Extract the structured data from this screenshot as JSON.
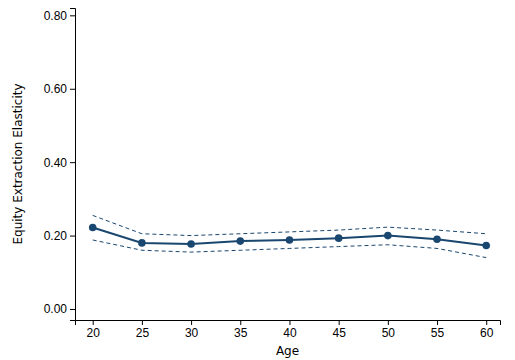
{
  "chart_data": {
    "type": "line",
    "x_label": "Age",
    "y_label": "Equity Extraction Elasticity",
    "x": [
      20,
      25,
      30,
      35,
      40,
      45,
      50,
      55,
      60
    ],
    "series": [
      {
        "color": "#1a476f",
        "line_style": "solid",
        "marker": "circle",
        "values": [
          0.222,
          0.18,
          0.177,
          0.185,
          0.188,
          0.193,
          0.2,
          0.19,
          0.173
        ]
      },
      {
        "color": "#1a476f",
        "line_style": "dashed",
        "marker": "none",
        "values": [
          0.255,
          0.205,
          0.2,
          0.205,
          0.21,
          0.215,
          0.223,
          0.215,
          0.205
        ]
      },
      {
        "color": "#1a476f",
        "line_style": "dashed",
        "marker": "none",
        "values": [
          0.188,
          0.16,
          0.155,
          0.16,
          0.165,
          0.17,
          0.175,
          0.165,
          0.14
        ]
      }
    ],
    "xlim": [
      18.2,
      61.4
    ],
    "xticks": [
      20,
      25,
      30,
      35,
      40,
      45,
      50,
      55,
      60
    ],
    "ylim": [
      -0.03,
      0.82
    ],
    "yticks": [
      {
        "value": 0,
        "label": "0.00"
      },
      {
        "value": 0.2,
        "label": "0.20"
      },
      {
        "value": 0.4,
        "label": "0.40"
      },
      {
        "value": 0.6,
        "label": "0.60"
      },
      {
        "value": 0.8,
        "label": "0.80"
      }
    ],
    "grid": false
  }
}
